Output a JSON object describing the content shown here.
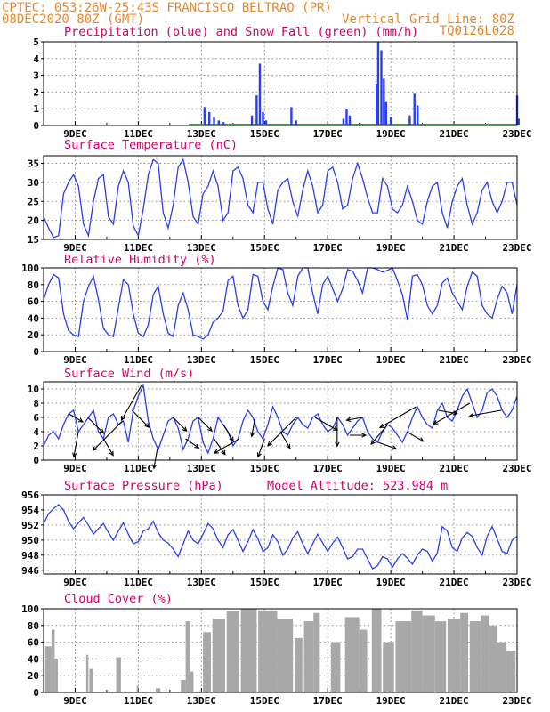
{
  "header": {
    "left_line1": "CPTEC:  053:26W-25:43S  FRANCISCO BELTRAO (PR)",
    "left_line2": "08DEC2020 80Z (GMT)",
    "right_line2": "Vertical Grid Line: 80Z",
    "right_line3": "TQ0126L028"
  },
  "date_labels": [
    "9DEC",
    "11DEC",
    "13DEC",
    "15DEC",
    "17DEC",
    "19DEC",
    "21DEC",
    "23DEC"
  ],
  "colors": {
    "line": "#2a3ef0",
    "snow": "#22aa22",
    "cloud": "#a8a8a8",
    "header": "#e8882a",
    "title": "#d4006c"
  },
  "chart_data": [
    {
      "type": "bar",
      "title": "Precipitation (blue) and Snow Fall (green) (mm/h)",
      "ylim": [
        0,
        5
      ],
      "yticks": [
        "0",
        "1",
        "2",
        "3",
        "4",
        "5"
      ],
      "series": [
        {
          "name": "Precipitation",
          "color": "#2a3ef0",
          "points": [
            [
              13.1,
              1.1
            ],
            [
              13.25,
              0.8
            ],
            [
              13.4,
              0.5
            ],
            [
              13.55,
              0.3
            ],
            [
              13.7,
              0.2
            ],
            [
              14.6,
              0.6
            ],
            [
              14.75,
              1.8
            ],
            [
              14.85,
              3.7
            ],
            [
              14.95,
              0.8
            ],
            [
              15.05,
              0.3
            ],
            [
              15.85,
              1.1
            ],
            [
              16.0,
              0.3
            ],
            [
              17.5,
              0.4
            ],
            [
              17.6,
              1.0
            ],
            [
              17.7,
              0.6
            ],
            [
              18.55,
              2.5
            ],
            [
              18.6,
              5.0
            ],
            [
              18.7,
              4.5
            ],
            [
              18.78,
              2.8
            ],
            [
              18.85,
              1.4
            ],
            [
              19.0,
              0.5
            ],
            [
              19.6,
              0.6
            ],
            [
              19.75,
              1.9
            ],
            [
              19.85,
              1.2
            ],
            [
              23.0,
              1.8
            ],
            [
              23.05,
              0.4
            ]
          ]
        },
        {
          "name": "Snow Fall",
          "color": "#22aa22",
          "band": [
            12.6,
            23.0
          ]
        }
      ]
    },
    {
      "type": "line",
      "title": "Surface Temperature (nC)",
      "ylim": [
        15,
        37
      ],
      "yticks": [
        "15",
        "20",
        "25",
        "30",
        "35"
      ],
      "series": [
        {
          "name": "Surface Temperature",
          "values": [
            21,
            18,
            15.5,
            16,
            27,
            30,
            32,
            29,
            19,
            16,
            25,
            31,
            32,
            21,
            19,
            29,
            33,
            30,
            18.5,
            16,
            23,
            32,
            36,
            35,
            22,
            18,
            24,
            34,
            36,
            30,
            21,
            19,
            27,
            29,
            33,
            29,
            20,
            22,
            33,
            34,
            31,
            24,
            22,
            30,
            30,
            23,
            19,
            28,
            30,
            31,
            25,
            21,
            28,
            33,
            29,
            22,
            24,
            33,
            34,
            30,
            23,
            24,
            31,
            35,
            31,
            26,
            22,
            22,
            31,
            29,
            23,
            22,
            24,
            29,
            25,
            20,
            19,
            25,
            29,
            30,
            22,
            18,
            25,
            29,
            31,
            24,
            19,
            22,
            28,
            30,
            25,
            22,
            25,
            30,
            30,
            24
          ]
        }
      ]
    },
    {
      "type": "line",
      "title": "Relative Humidity (%)",
      "ylim": [
        0,
        100
      ],
      "yticks": [
        "0",
        "20",
        "40",
        "60",
        "80",
        "100"
      ],
      "series": [
        {
          "name": "Relative Humidity",
          "values": [
            62,
            80,
            92,
            88,
            45,
            25,
            20,
            18,
            60,
            78,
            90,
            62,
            28,
            20,
            18,
            52,
            86,
            80,
            45,
            22,
            18,
            32,
            68,
            78,
            45,
            22,
            18,
            55,
            70,
            50,
            20,
            18,
            15,
            20,
            35,
            40,
            48,
            85,
            90,
            55,
            40,
            50,
            92,
            90,
            60,
            50,
            78,
            100,
            98,
            70,
            55,
            90,
            100,
            100,
            70,
            45,
            80,
            90,
            75,
            60,
            75,
            98,
            96,
            85,
            70,
            100,
            100,
            98,
            95,
            97,
            100,
            85,
            68,
            38,
            90,
            92,
            80,
            55,
            45,
            55,
            82,
            88,
            70,
            60,
            50,
            78,
            95,
            90,
            55,
            45,
            40,
            62,
            78,
            70,
            45,
            80
          ]
        }
      ]
    },
    {
      "type": "line",
      "title": "Surface Wind (m/s)",
      "ylim": [
        0,
        11
      ],
      "yticks": [
        "0",
        "2",
        "4",
        "6",
        "8",
        "10"
      ],
      "series": [
        {
          "name": "Surface Wind",
          "values": [
            2,
            3.5,
            4,
            3,
            5,
            6.5,
            7,
            4,
            5,
            6,
            7,
            4,
            3,
            6,
            6.5,
            5,
            5.5,
            2.5,
            7,
            9,
            10.5,
            5.5,
            3,
            1.5,
            3.5,
            5.5,
            6,
            4.5,
            1.5,
            3,
            5.5,
            6,
            2.5,
            1,
            3,
            6,
            5,
            4,
            2,
            3,
            5.5,
            7,
            6,
            4,
            3,
            5,
            7.5,
            6,
            4,
            3.5,
            5,
            6,
            5,
            4.5,
            6,
            6.5,
            5,
            4,
            4.5,
            6,
            5,
            3.5,
            4.5,
            5.5,
            6,
            4,
            3,
            2.5,
            4,
            5,
            4.5,
            3.5,
            2.5,
            4,
            6,
            7.5,
            6,
            5,
            4.5,
            7,
            8,
            6,
            5.5,
            7,
            9,
            10,
            8,
            6,
            7,
            9.5,
            10,
            9,
            7,
            6,
            7,
            9
          ]
        }
      ],
      "arrows": [
        [
          8.8,
          -30,
          1.0
        ],
        [
          9.1,
          -100,
          1.6
        ],
        [
          9.4,
          -45,
          1.4
        ],
        [
          9.9,
          -60,
          1.2
        ],
        [
          10.5,
          -135,
          2.6
        ],
        [
          10.8,
          -45,
          1.5
        ],
        [
          11.1,
          -120,
          2.5
        ],
        [
          11.6,
          -100,
          1.2
        ],
        [
          12.1,
          -45,
          1.2
        ],
        [
          12.5,
          -35,
          1.0
        ],
        [
          12.9,
          -45,
          1.2
        ],
        [
          13.4,
          -55,
          1.2
        ],
        [
          13.7,
          -60,
          1.2
        ],
        [
          14.2,
          -150,
          1.8
        ],
        [
          14.7,
          -100,
          1.2
        ],
        [
          15.0,
          -110,
          1.2
        ],
        [
          15.5,
          -60,
          1.2
        ],
        [
          16.0,
          -135,
          2.5
        ],
        [
          16.6,
          -30,
          1.6
        ],
        [
          17.3,
          -90,
          1.8
        ],
        [
          17.7,
          0,
          1.0
        ],
        [
          18.1,
          -170,
          1.0
        ],
        [
          18.6,
          -20,
          1.2
        ],
        [
          18.9,
          -130,
          1.6
        ],
        [
          19.5,
          -30,
          1.2
        ],
        [
          19.8,
          -150,
          2.6
        ],
        [
          20.5,
          -10,
          1.2
        ],
        [
          21.5,
          -150,
          2.6
        ],
        [
          22.5,
          -170,
          2.0
        ]
      ]
    },
    {
      "type": "line",
      "title": "Surface Pressure (hPa)",
      "subtitle": "Model Altitude: 523.984 m",
      "ylim": [
        945.5,
        956
      ],
      "yticks": [
        "946",
        "948",
        "950",
        "952",
        "954",
        "956"
      ],
      "series": [
        {
          "name": "Surface Pressure",
          "values": [
            952.2,
            953.5,
            954.2,
            954.7,
            954,
            952.5,
            951.5,
            952.3,
            953,
            952,
            950.8,
            951.5,
            952.2,
            951,
            950,
            951.2,
            952.3,
            950.8,
            949.5,
            949.8,
            951.2,
            951.5,
            952.5,
            951,
            950,
            949.6,
            948.8,
            947.8,
            949.5,
            951.2,
            950,
            949.5,
            950.8,
            952.2,
            951.5,
            950,
            949,
            950.7,
            951.4,
            950,
            948.5,
            949.8,
            951.4,
            950.2,
            948.5,
            949,
            950.7,
            949.8,
            948,
            948.8,
            950.3,
            951.1,
            949.5,
            948.2,
            949.5,
            950.8,
            949.6,
            948.5,
            949.6,
            950.4,
            949,
            947.5,
            947.8,
            948.8,
            948.8,
            947.5,
            946.2,
            946.6,
            947.8,
            947.5,
            946.4,
            947.5,
            948.2,
            947.6,
            946.8,
            948,
            948.8,
            948.5,
            947.2,
            948.3,
            951.8,
            951.2,
            949,
            948.5,
            950.3,
            951,
            950.5,
            949,
            948,
            950.5,
            951.8,
            950.2,
            948.5,
            948.2,
            950,
            950.5
          ]
        }
      ]
    },
    {
      "type": "bar",
      "title": "Cloud Cover (%)",
      "ylim": [
        0,
        100
      ],
      "yticks": [
        "0",
        "20",
        "40",
        "60",
        "80",
        "100"
      ],
      "series": [
        {
          "name": "Cloud Cover",
          "blocks": [
            [
              8.05,
              8.25,
              55
            ],
            [
              8.25,
              8.35,
              75
            ],
            [
              8.35,
              8.45,
              40
            ],
            [
              9.35,
              9.42,
              45
            ],
            [
              9.45,
              9.55,
              28
            ],
            [
              10.3,
              10.45,
              42
            ],
            [
              10.95,
              11.0,
              8
            ],
            [
              11.55,
              11.7,
              5
            ],
            [
              12.35,
              12.5,
              15
            ],
            [
              12.5,
              12.65,
              85
            ],
            [
              12.65,
              12.75,
              25
            ],
            [
              13.05,
              13.3,
              72
            ],
            [
              13.35,
              13.75,
              88
            ],
            [
              13.8,
              14.2,
              97
            ],
            [
              14.25,
              14.75,
              100
            ],
            [
              14.8,
              15.4,
              98
            ],
            [
              15.4,
              15.9,
              88
            ],
            [
              15.95,
              16.2,
              65
            ],
            [
              16.25,
              16.55,
              85
            ],
            [
              16.55,
              16.75,
              95
            ],
            [
              17.1,
              17.4,
              60
            ],
            [
              17.55,
              18.0,
              90
            ],
            [
              18.0,
              18.25,
              75
            ],
            [
              18.4,
              18.7,
              100
            ],
            [
              18.75,
              19.1,
              60
            ],
            [
              19.15,
              19.65,
              85
            ],
            [
              19.65,
              20.0,
              98
            ],
            [
              20.0,
              20.4,
              92
            ],
            [
              20.4,
              20.75,
              85
            ],
            [
              20.8,
              21.2,
              88
            ],
            [
              21.2,
              21.45,
              95
            ],
            [
              21.5,
              21.85,
              85
            ],
            [
              21.85,
              22.1,
              92
            ],
            [
              22.1,
              22.35,
              80
            ],
            [
              22.35,
              22.65,
              60
            ],
            [
              22.65,
              22.95,
              50
            ]
          ]
        }
      ]
    }
  ]
}
